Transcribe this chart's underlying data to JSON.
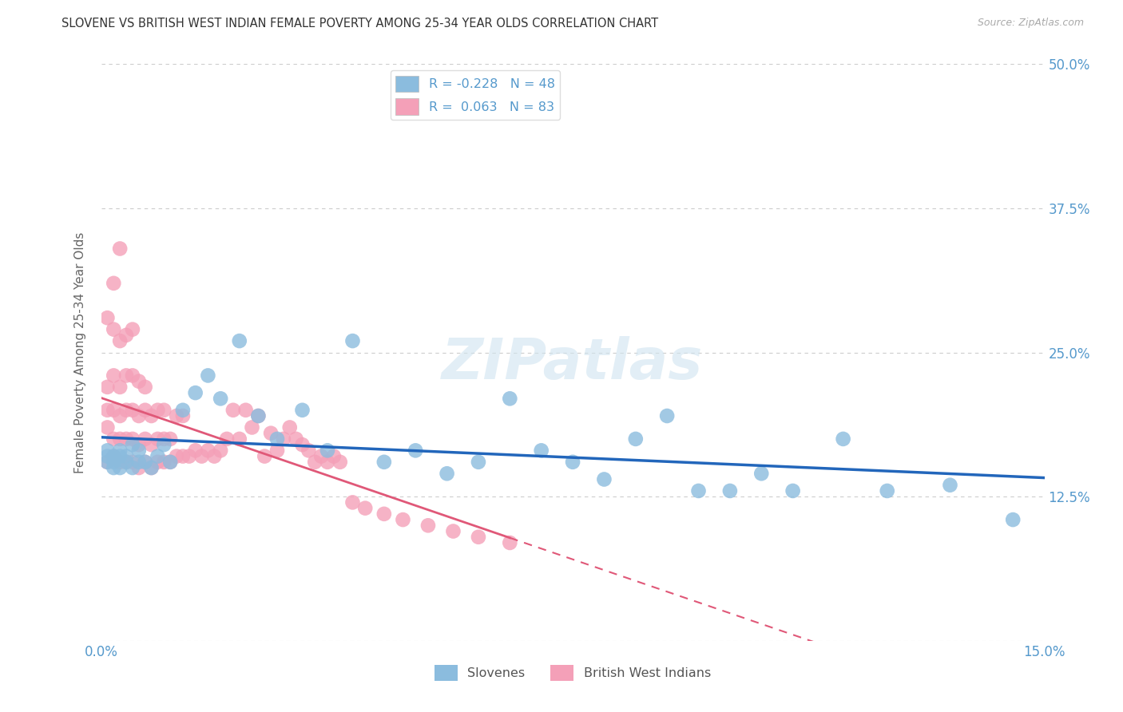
{
  "title": "SLOVENE VS BRITISH WEST INDIAN FEMALE POVERTY AMONG 25-34 YEAR OLDS CORRELATION CHART",
  "source": "Source: ZipAtlas.com",
  "ylabel": "Female Poverty Among 25-34 Year Olds",
  "xlim": [
    0.0,
    0.15
  ],
  "ylim": [
    0.0,
    0.5
  ],
  "xticks": [
    0.0,
    0.0375,
    0.075,
    0.1125,
    0.15
  ],
  "xticklabels": [
    "0.0%",
    "",
    "",
    "",
    "15.0%"
  ],
  "yticks": [
    0.0,
    0.125,
    0.25,
    0.375,
    0.5
  ],
  "yticklabels": [
    "",
    "12.5%",
    "25.0%",
    "37.5%",
    "50.0%"
  ],
  "slovene_R": -0.228,
  "slovene_N": 48,
  "bwi_R": 0.063,
  "bwi_N": 83,
  "slovene_color": "#8BBCDE",
  "bwi_color": "#F4A0B8",
  "slovene_line_color": "#2266BB",
  "bwi_line_color": "#E05878",
  "background_color": "#ffffff",
  "grid_color": "#cccccc",
  "title_color": "#333333",
  "axis_label_color": "#666666",
  "tick_label_color": "#5599cc",
  "slovene_x": [
    0.001,
    0.001,
    0.001,
    0.002,
    0.002,
    0.002,
    0.003,
    0.003,
    0.003,
    0.004,
    0.004,
    0.005,
    0.005,
    0.006,
    0.006,
    0.007,
    0.008,
    0.009,
    0.01,
    0.011,
    0.013,
    0.015,
    0.017,
    0.019,
    0.022,
    0.025,
    0.028,
    0.032,
    0.036,
    0.04,
    0.045,
    0.05,
    0.055,
    0.06,
    0.065,
    0.07,
    0.075,
    0.08,
    0.085,
    0.09,
    0.095,
    0.1,
    0.105,
    0.11,
    0.118,
    0.125,
    0.135,
    0.145
  ],
  "slovene_y": [
    0.155,
    0.16,
    0.165,
    0.15,
    0.155,
    0.16,
    0.15,
    0.16,
    0.165,
    0.155,
    0.16,
    0.15,
    0.17,
    0.155,
    0.165,
    0.155,
    0.15,
    0.16,
    0.17,
    0.155,
    0.2,
    0.215,
    0.23,
    0.21,
    0.26,
    0.195,
    0.175,
    0.2,
    0.165,
    0.26,
    0.155,
    0.165,
    0.145,
    0.155,
    0.21,
    0.165,
    0.155,
    0.14,
    0.175,
    0.195,
    0.13,
    0.13,
    0.145,
    0.13,
    0.175,
    0.13,
    0.135,
    0.105
  ],
  "bwi_x": [
    0.001,
    0.001,
    0.001,
    0.001,
    0.001,
    0.002,
    0.002,
    0.002,
    0.002,
    0.002,
    0.002,
    0.003,
    0.003,
    0.003,
    0.003,
    0.003,
    0.003,
    0.004,
    0.004,
    0.004,
    0.004,
    0.004,
    0.005,
    0.005,
    0.005,
    0.005,
    0.005,
    0.006,
    0.006,
    0.006,
    0.006,
    0.007,
    0.007,
    0.007,
    0.007,
    0.008,
    0.008,
    0.008,
    0.009,
    0.009,
    0.009,
    0.01,
    0.01,
    0.01,
    0.011,
    0.011,
    0.012,
    0.012,
    0.013,
    0.013,
    0.014,
    0.015,
    0.016,
    0.017,
    0.018,
    0.019,
    0.02,
    0.021,
    0.022,
    0.023,
    0.024,
    0.025,
    0.026,
    0.027,
    0.028,
    0.029,
    0.03,
    0.031,
    0.032,
    0.033,
    0.034,
    0.035,
    0.036,
    0.037,
    0.038,
    0.04,
    0.042,
    0.045,
    0.048,
    0.052,
    0.056,
    0.06,
    0.065
  ],
  "bwi_y": [
    0.155,
    0.185,
    0.2,
    0.22,
    0.28,
    0.16,
    0.175,
    0.2,
    0.23,
    0.27,
    0.31,
    0.155,
    0.175,
    0.195,
    0.22,
    0.26,
    0.34,
    0.155,
    0.175,
    0.2,
    0.23,
    0.265,
    0.155,
    0.175,
    0.2,
    0.23,
    0.27,
    0.15,
    0.17,
    0.195,
    0.225,
    0.155,
    0.175,
    0.2,
    0.22,
    0.15,
    0.17,
    0.195,
    0.155,
    0.175,
    0.2,
    0.155,
    0.175,
    0.2,
    0.155,
    0.175,
    0.16,
    0.195,
    0.16,
    0.195,
    0.16,
    0.165,
    0.16,
    0.165,
    0.16,
    0.165,
    0.175,
    0.2,
    0.175,
    0.2,
    0.185,
    0.195,
    0.16,
    0.18,
    0.165,
    0.175,
    0.185,
    0.175,
    0.17,
    0.165,
    0.155,
    0.16,
    0.155,
    0.16,
    0.155,
    0.12,
    0.115,
    0.11,
    0.105,
    0.1,
    0.095,
    0.09,
    0.085
  ],
  "watermark": "ZIPatlas"
}
